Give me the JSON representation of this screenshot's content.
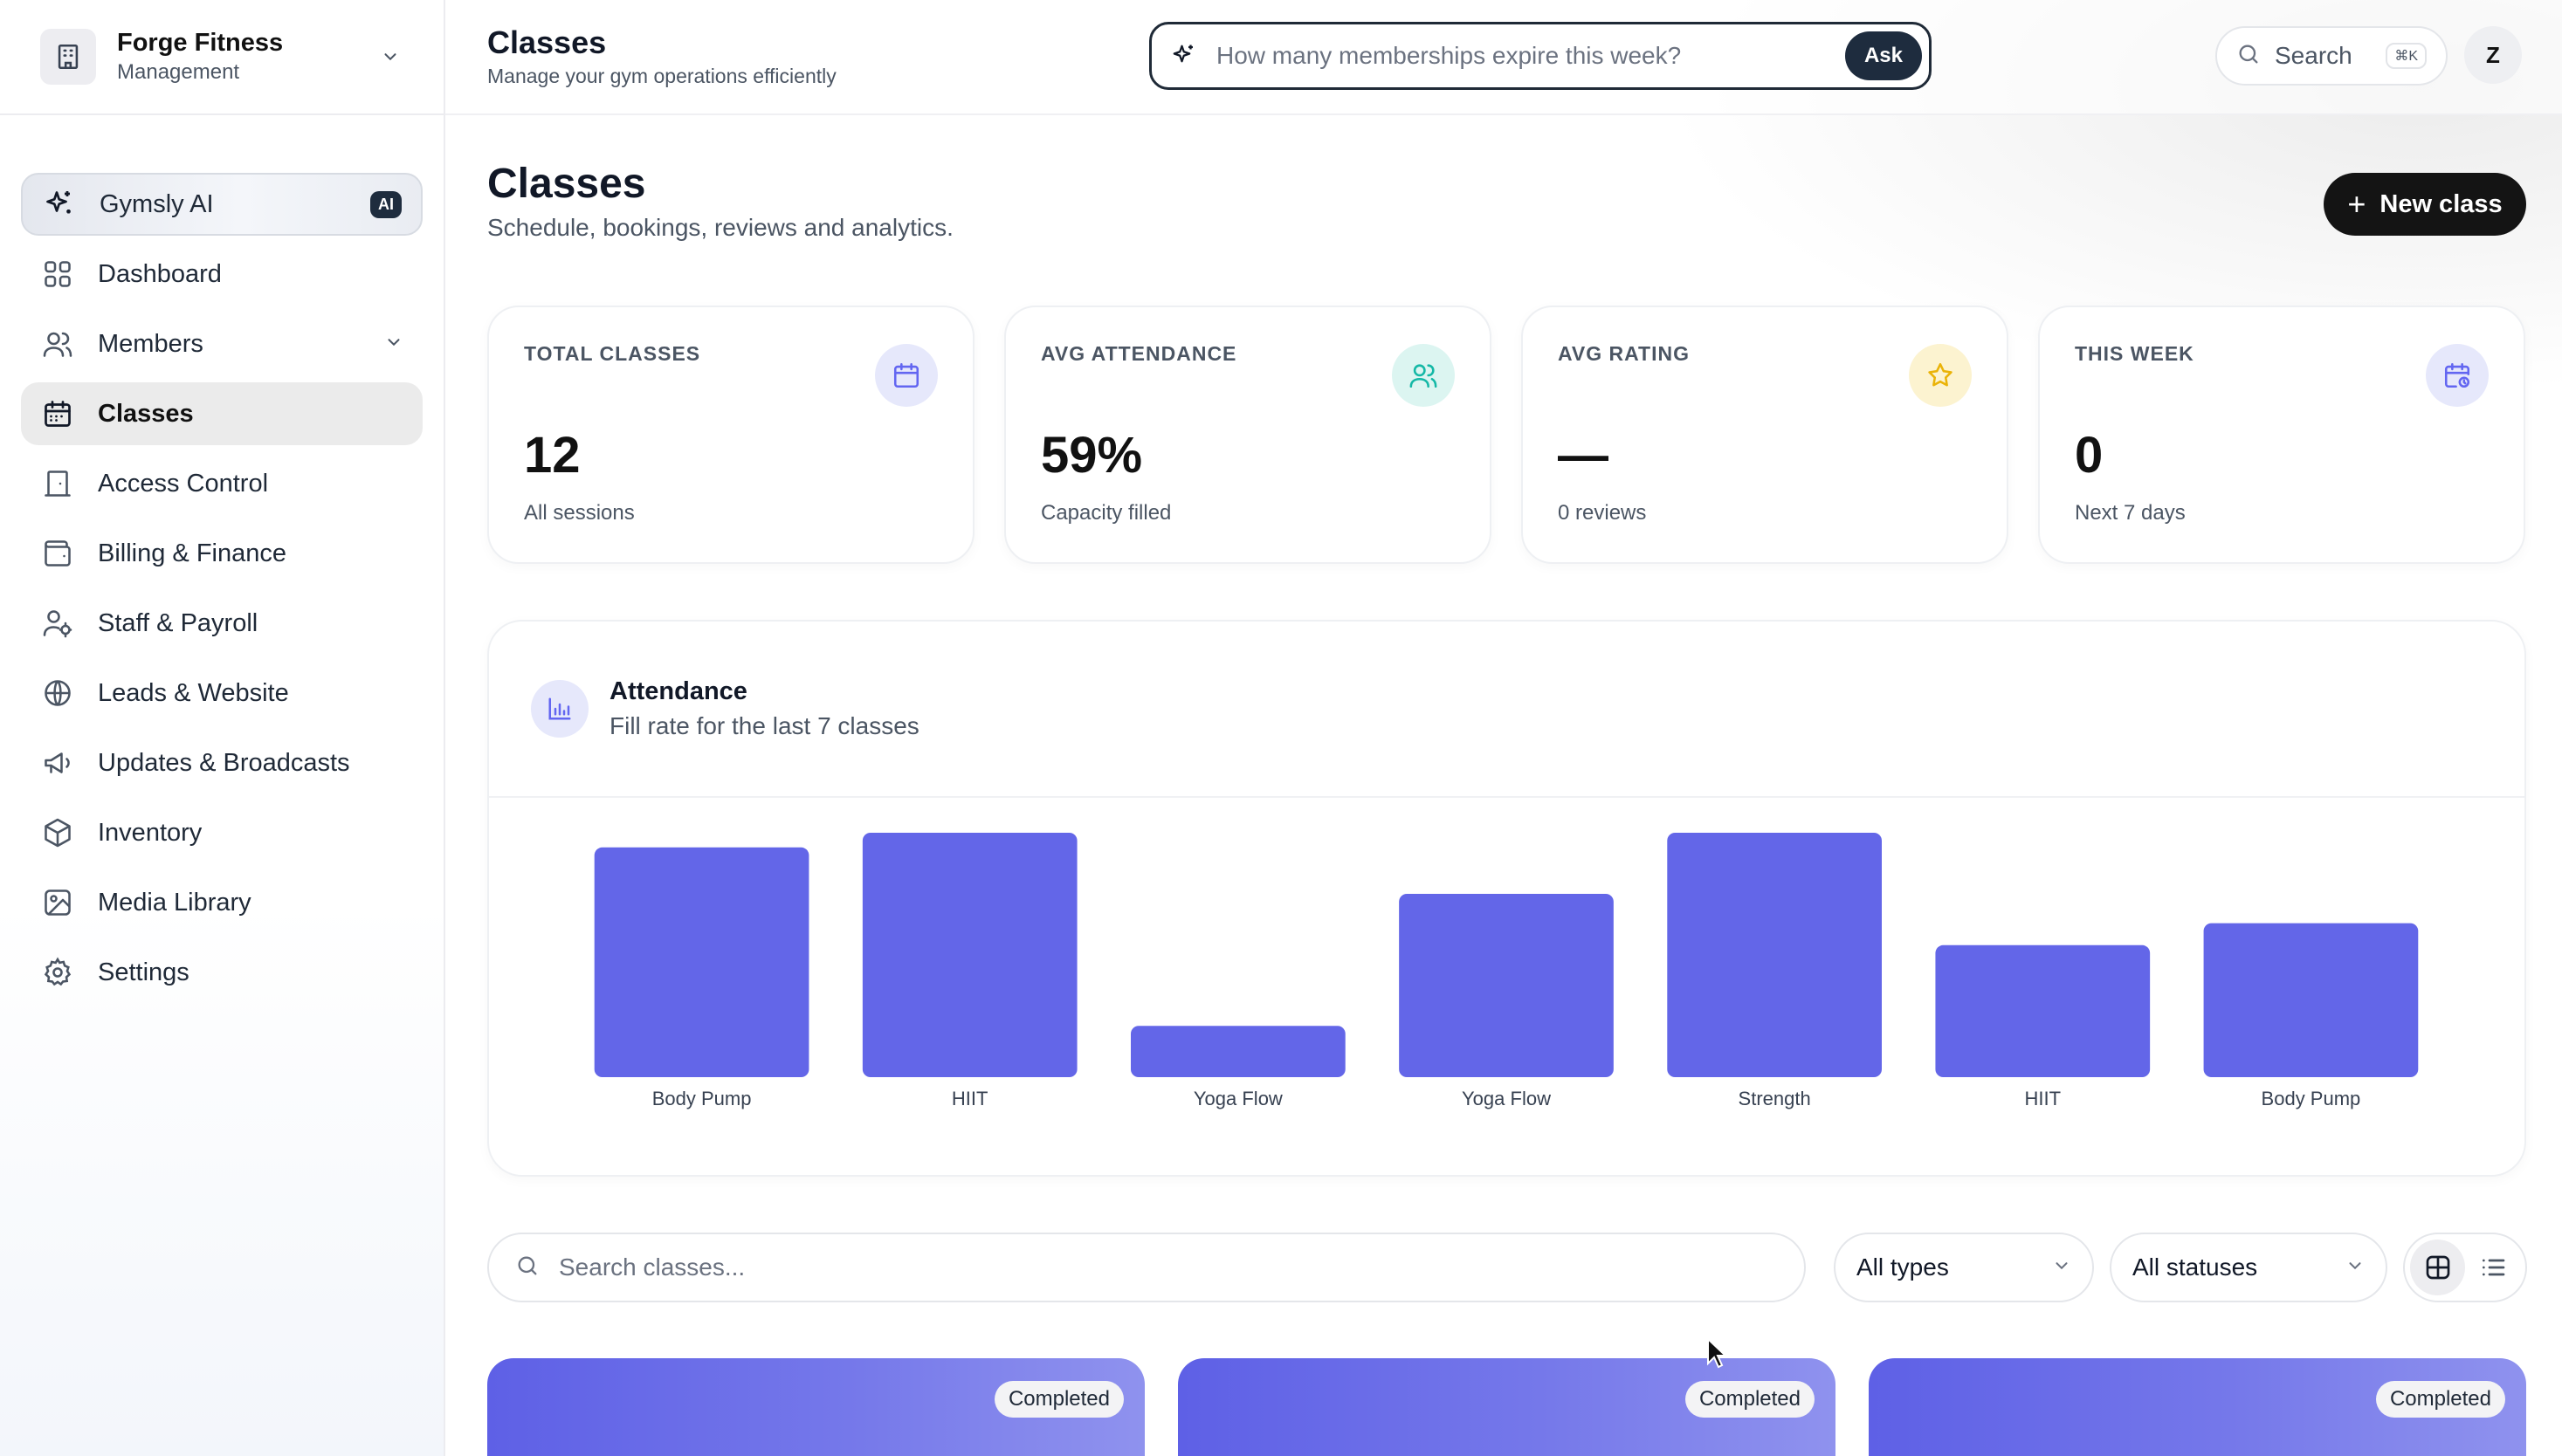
{
  "workspace": {
    "name": "Forge Fitness",
    "subtitle": "Management"
  },
  "nav": {
    "ai": {
      "label": "Gymsly AI",
      "badge": "AI"
    },
    "items": [
      {
        "label": "Dashboard",
        "icon": "grid-icon"
      },
      {
        "label": "Members",
        "icon": "users-icon",
        "expandable": true
      },
      {
        "label": "Classes",
        "icon": "calendar-icon",
        "active": true
      },
      {
        "label": "Access Control",
        "icon": "door-icon"
      },
      {
        "label": "Billing & Finance",
        "icon": "wallet-icon"
      },
      {
        "label": "Staff & Payroll",
        "icon": "user-cog-icon"
      },
      {
        "label": "Leads & Website",
        "icon": "globe-icon"
      },
      {
        "label": "Updates & Broadcasts",
        "icon": "megaphone-icon"
      },
      {
        "label": "Inventory",
        "icon": "box-icon"
      },
      {
        "label": "Media Library",
        "icon": "image-icon"
      },
      {
        "label": "Settings",
        "icon": "gear-icon"
      }
    ]
  },
  "topbar": {
    "title": "Classes",
    "subtitle": "Manage your gym operations efficiently",
    "ask_placeholder": "How many memberships expire this week?",
    "ask_button": "Ask",
    "search_label": "Search",
    "search_shortcut": "⌘K",
    "avatar_initial": "Z"
  },
  "page": {
    "title": "Classes",
    "subtitle": "Schedule, bookings, reviews and analytics.",
    "new_button": "New class"
  },
  "stats": [
    {
      "label": "TOTAL CLASSES",
      "value": "12",
      "desc": "All sessions",
      "icon": "calendar-icon",
      "color": "#6366f1",
      "bg": "#e6e8fb"
    },
    {
      "label": "AVG ATTENDANCE",
      "value": "59%",
      "desc": "Capacity filled",
      "icon": "users-icon",
      "color": "#14b8a6",
      "bg": "#dcf5f1"
    },
    {
      "label": "AVG RATING",
      "value": "—",
      "desc": "0 reviews",
      "icon": "star-icon",
      "color": "#eab308",
      "bg": "#fcf3d0"
    },
    {
      "label": "THIS WEEK",
      "value": "0",
      "desc": "Next 7 days",
      "icon": "calendar-clock-icon",
      "color": "#6366f1",
      "bg": "#e6e8fb"
    }
  ],
  "chart": {
    "title": "Attendance",
    "subtitle": "Fill rate for the last 7 classes"
  },
  "chart_data": {
    "type": "bar",
    "categories": [
      "Body Pump",
      "HIIT",
      "Yoga Flow",
      "Yoga Flow",
      "Strength",
      "HIIT",
      "Body Pump"
    ],
    "values": [
      94,
      100,
      21,
      75,
      100,
      54,
      63
    ],
    "ylim": [
      0,
      100
    ],
    "color": "#6366e8",
    "grid": false,
    "legend": "none"
  },
  "filters": {
    "search_placeholder": "Search classes...",
    "type_select": "All types",
    "status_select": "All statuses"
  },
  "class_cards": [
    {
      "status": "Completed"
    },
    {
      "status": "Completed"
    },
    {
      "status": "Completed"
    }
  ]
}
